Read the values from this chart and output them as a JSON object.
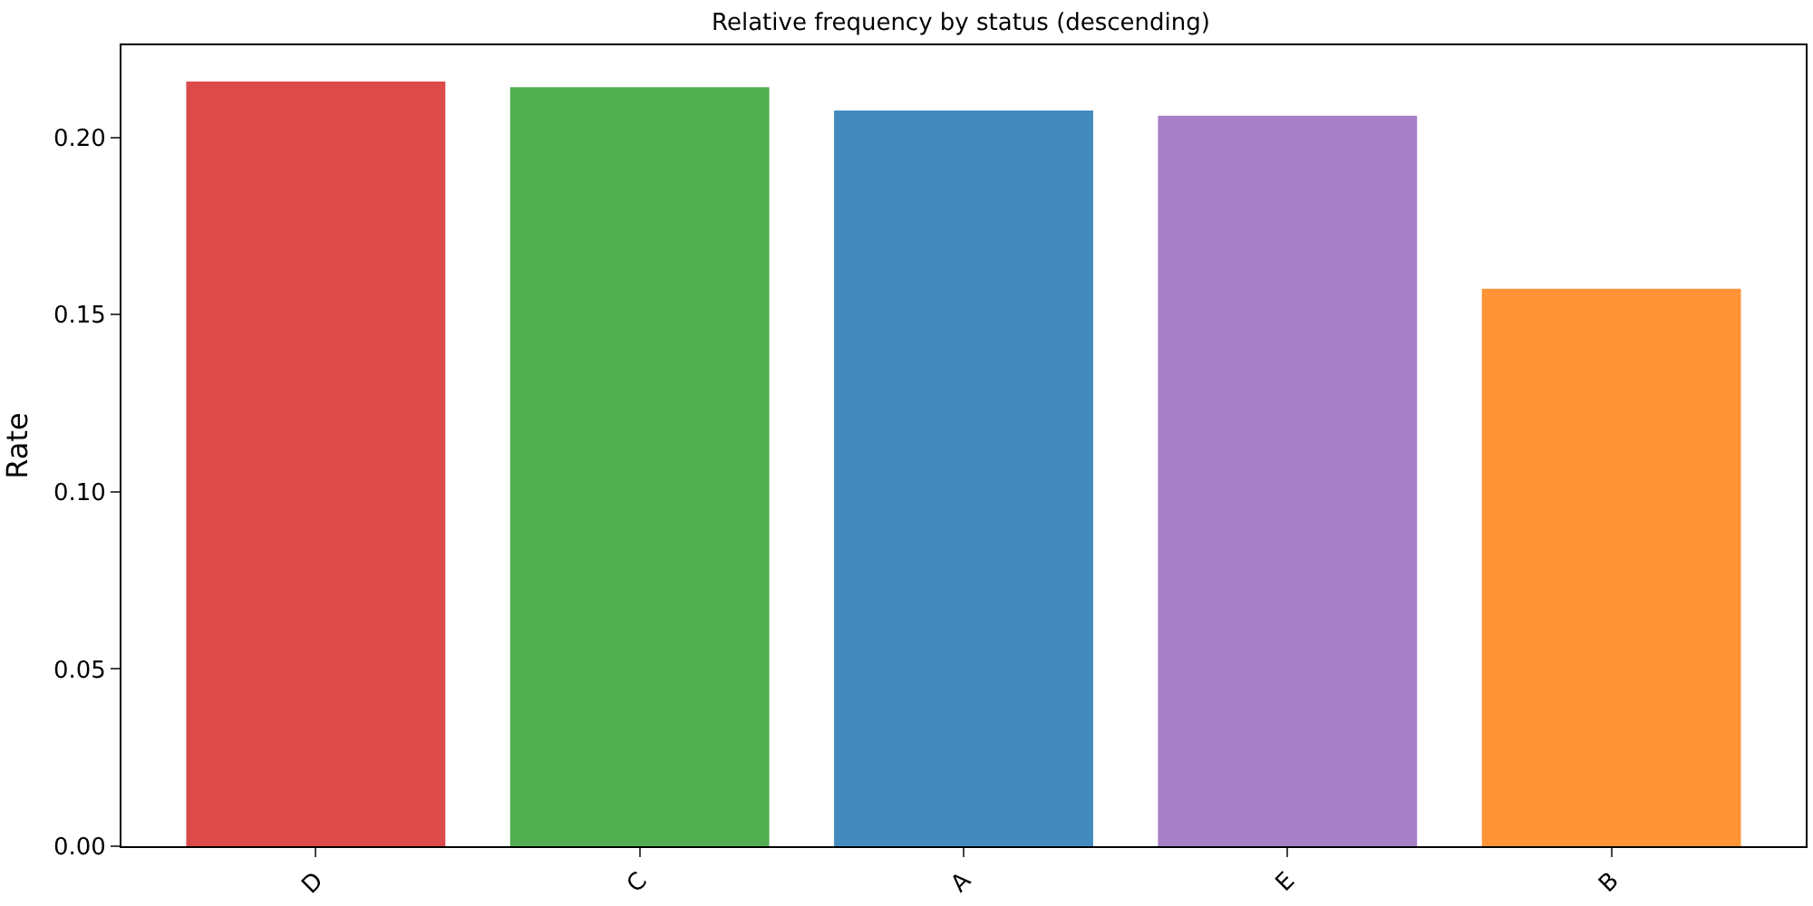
{
  "chart_data": {
    "type": "bar",
    "title": "Relative frequency by status (descending)",
    "ylabel": "Rate",
    "categories": [
      "D",
      "C",
      "A",
      "E",
      "B"
    ],
    "values": [
      0.2158,
      0.2142,
      0.2076,
      0.2061,
      0.1573
    ],
    "colors": [
      "#dc4a4a",
      "#50ad50",
      "#438bbf",
      "#a680c7",
      "#fe9436"
    ],
    "ylim": [
      0,
      0.226
    ],
    "yticks": [
      {
        "value": 0,
        "label": "0.00"
      },
      {
        "value": 0.05,
        "label": "0.05"
      },
      {
        "value": 0.1,
        "label": "0.10"
      },
      {
        "value": 0.15,
        "label": "0.15"
      },
      {
        "value": 0.2,
        "label": "0.20"
      }
    ]
  }
}
